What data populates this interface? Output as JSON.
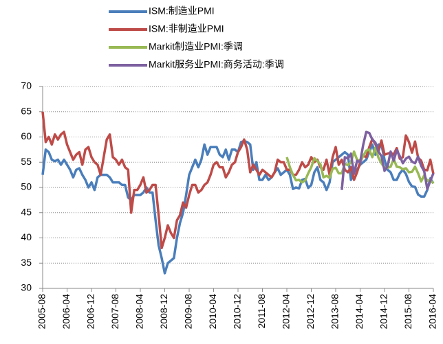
{
  "chart_data": {
    "type": "line",
    "categories": [
      "2005-08",
      null,
      null,
      null,
      null,
      null,
      null,
      null,
      "2006-04",
      null,
      null,
      null,
      null,
      null,
      null,
      null,
      "2006-12",
      null,
      null,
      null,
      null,
      null,
      null,
      null,
      "2007-08",
      null,
      null,
      null,
      null,
      null,
      null,
      null,
      "2008-04",
      null,
      null,
      null,
      null,
      null,
      null,
      null,
      "2008-12",
      null,
      null,
      null,
      null,
      null,
      null,
      null,
      "2009-08",
      null,
      null,
      null,
      null,
      null,
      null,
      null,
      "2010-04",
      null,
      null,
      null,
      null,
      null,
      null,
      null,
      "2010-12",
      null,
      null,
      null,
      null,
      null,
      null,
      null,
      "2011-08",
      null,
      null,
      null,
      null,
      null,
      null,
      null,
      "2012-04",
      null,
      null,
      null,
      null,
      null,
      null,
      null,
      "2012-12",
      null,
      null,
      null,
      null,
      null,
      null,
      null,
      "2013-08",
      null,
      null,
      null,
      null,
      null,
      null,
      null,
      "2014-04",
      null,
      null,
      null,
      null,
      null,
      null,
      null,
      "2014-12",
      null,
      null,
      null,
      null,
      null,
      null,
      null,
      "2015-08",
      null,
      null,
      null,
      null,
      null,
      null,
      null,
      "2016-04"
    ],
    "series": [
      {
        "name": "ISM:制造业PMI",
        "color": "#4a7ebb",
        "values": [
          52.5,
          57.5,
          57,
          55.5,
          55.2,
          55.5,
          54.5,
          55.5,
          54.5,
          53.5,
          52,
          53.5,
          53.8,
          52.5,
          51.5,
          50,
          51,
          49.5,
          52,
          52.5,
          52.5,
          52.5,
          52,
          51,
          51,
          51,
          50.5,
          50.5,
          48,
          47.5,
          48.5,
          48.5,
          48.5,
          49,
          50,
          49,
          49,
          43.5,
          38.5,
          36,
          33,
          35,
          35.5,
          36,
          40,
          43,
          45,
          48.5,
          52.5,
          54,
          55.5,
          54,
          55.5,
          58.5,
          56.5,
          58,
          58,
          58,
          56.5,
          56,
          57.5,
          55.5,
          57.5,
          57.5,
          57,
          59,
          59.2,
          59,
          58.5,
          53.5,
          55,
          51.5,
          51.5,
          52.5,
          51.5,
          52,
          53,
          53.8,
          52.5,
          53,
          53.5,
          52.5,
          49.7,
          50,
          49.8,
          51.5,
          51.7,
          49.9,
          50.5,
          53,
          54,
          51.5,
          51,
          49.5,
          51,
          55,
          55.5,
          56,
          56.5,
          57,
          56.5,
          51.5,
          53,
          53.5,
          54.5,
          55,
          55.5,
          57,
          58.5,
          56.5,
          58.5,
          58.5,
          55.5,
          53.5,
          53,
          51.5,
          51.5,
          52.8,
          53.5,
          52.7,
          51.1,
          50.2,
          50.1,
          48.6,
          48.2,
          48.2,
          49.5,
          51.8,
          50.8
        ]
      },
      {
        "name": "ISM:非制造业PMI",
        "color": "#be4b48",
        "values": [
          65,
          59,
          60,
          58.5,
          60.5,
          59.5,
          60.5,
          61,
          58.5,
          57,
          55.5,
          56.5,
          57,
          54.5,
          57.5,
          58,
          56,
          55,
          54.5,
          52.5,
          56,
          59.5,
          60.5,
          56,
          55.5,
          54.5,
          55.5,
          54,
          53.5,
          45,
          49.5,
          49.5,
          50.5,
          52,
          49,
          49.5,
          50.5,
          50.5,
          44.5,
          38,
          40,
          42.5,
          41,
          40,
          43.5,
          44.5,
          47,
          46,
          48.5,
          50.5,
          50.5,
          49,
          49.5,
          50.5,
          51,
          52.5,
          54.5,
          55,
          54,
          54,
          52,
          53,
          54.5,
          55,
          57,
          58,
          59.5,
          57.5,
          53,
          54.5,
          53.5,
          52.5,
          53.5,
          53,
          52.5,
          52,
          53,
          55.5,
          55,
          55,
          53.5,
          53.5,
          52.5,
          52.5,
          53.5,
          55,
          54,
          54.5,
          56,
          55,
          55.5,
          54,
          53.5,
          55.5,
          52.5,
          56,
          58,
          54.5,
          55.5,
          53.5,
          53,
          54,
          51.5,
          53,
          55,
          56.3,
          56,
          58,
          59.6,
          58.6,
          57.1,
          59.3,
          56.5,
          56.7,
          56.9,
          56.5,
          57.8,
          55.7,
          56,
          60.3,
          59,
          56.9,
          59.1,
          55.9,
          55.3,
          53.5,
          53.4,
          55.5,
          52.7
        ]
      },
      {
        "name": "Markit制造业PMI:季调",
        "color": "#98b954",
        "values": [
          null,
          null,
          null,
          null,
          null,
          null,
          null,
          null,
          null,
          null,
          null,
          null,
          null,
          null,
          null,
          null,
          null,
          null,
          null,
          null,
          null,
          null,
          null,
          null,
          null,
          null,
          null,
          null,
          null,
          null,
          null,
          null,
          null,
          null,
          null,
          null,
          null,
          null,
          null,
          null,
          null,
          null,
          null,
          null,
          null,
          null,
          null,
          null,
          null,
          null,
          null,
          null,
          null,
          null,
          null,
          null,
          null,
          null,
          null,
          null,
          null,
          null,
          null,
          null,
          null,
          null,
          null,
          null,
          null,
          null,
          null,
          null,
          null,
          null,
          null,
          null,
          null,
          null,
          null,
          null,
          56,
          54,
          52.5,
          51.4,
          51.5,
          51,
          51.4,
          52.8,
          54,
          55.8,
          55.2,
          54.6,
          52,
          52.3,
          51.9,
          53.7,
          53.9,
          52.8,
          52.8,
          54.7,
          54.4,
          55,
          57.1,
          55.5,
          55.3,
          56.2,
          57.3,
          57.5,
          56,
          57.9,
          55.9,
          54.8,
          53.9,
          53.9,
          54.1,
          55.7,
          54.1,
          54,
          53.6,
          53.8,
          53,
          53.1,
          54.1,
          52.8,
          51.2,
          52.4,
          51.3,
          51.5,
          50.8
        ]
      },
      {
        "name": "Markit服务业PMI:商务活动:季调",
        "color": "#7d60a0",
        "values": [
          null,
          null,
          null,
          null,
          null,
          null,
          null,
          null,
          null,
          null,
          null,
          null,
          null,
          null,
          null,
          null,
          null,
          null,
          null,
          null,
          null,
          null,
          null,
          null,
          null,
          null,
          null,
          null,
          null,
          null,
          null,
          null,
          null,
          null,
          null,
          null,
          null,
          null,
          null,
          null,
          null,
          null,
          null,
          null,
          null,
          null,
          null,
          null,
          null,
          null,
          null,
          null,
          null,
          null,
          null,
          null,
          null,
          null,
          null,
          null,
          null,
          null,
          null,
          null,
          null,
          null,
          null,
          null,
          null,
          null,
          null,
          null,
          null,
          null,
          null,
          null,
          null,
          null,
          null,
          null,
          null,
          null,
          null,
          null,
          null,
          null,
          null,
          null,
          null,
          null,
          null,
          null,
          null,
          null,
          null,
          null,
          null,
          null,
          49.5,
          56,
          55.7,
          56.7,
          52.7,
          55.3,
          55,
          58.4,
          61,
          60.8,
          59.5,
          58.9,
          57.1,
          56.2,
          53.3,
          54.2,
          57.1,
          55.3,
          57.4,
          56.2,
          54.8,
          55.7,
          56.1,
          55.1,
          54.8,
          56.1,
          54.3,
          53.2,
          49.7,
          51.3,
          52.8
        ]
      }
    ],
    "ylim": [
      30,
      70
    ],
    "yticks": [
      30,
      35,
      40,
      45,
      50,
      55,
      60,
      65,
      70
    ],
    "grid": true,
    "legend": "top"
  }
}
